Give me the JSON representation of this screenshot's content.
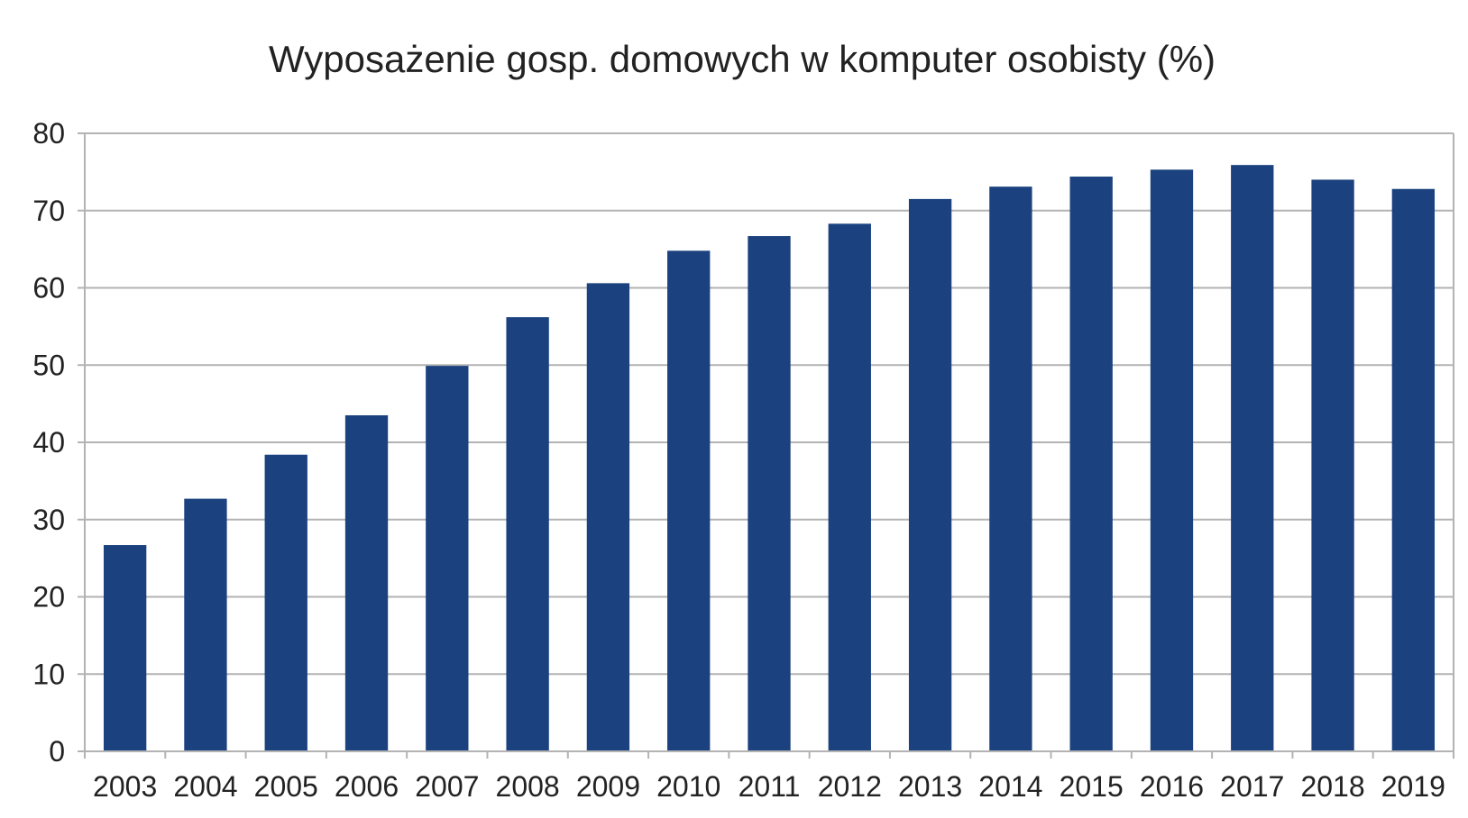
{
  "chart_data": {
    "type": "bar",
    "title": "Wyposażenie gosp. domowych w komputer osobisty (%)",
    "xlabel": "",
    "ylabel": "",
    "categories": [
      "2003",
      "2004",
      "2005",
      "2006",
      "2007",
      "2008",
      "2009",
      "2010",
      "2011",
      "2012",
      "2013",
      "2014",
      "2015",
      "2016",
      "2017",
      "2018",
      "2019"
    ],
    "values": [
      26.7,
      32.7,
      38.4,
      43.5,
      49.9,
      56.2,
      60.6,
      64.8,
      66.7,
      68.3,
      71.5,
      73.1,
      74.4,
      75.3,
      75.9,
      74.0,
      72.8
    ],
    "yticks": [
      "0",
      "10",
      "20",
      "30",
      "40",
      "50",
      "60",
      "70",
      "80"
    ],
    "ylim": [
      0,
      80
    ],
    "grid": true,
    "legend": "none",
    "colors": {
      "bar": "#1b427f",
      "grid": "#b3b3b3",
      "axis": "#b3b3b3",
      "text": "#222222"
    }
  }
}
